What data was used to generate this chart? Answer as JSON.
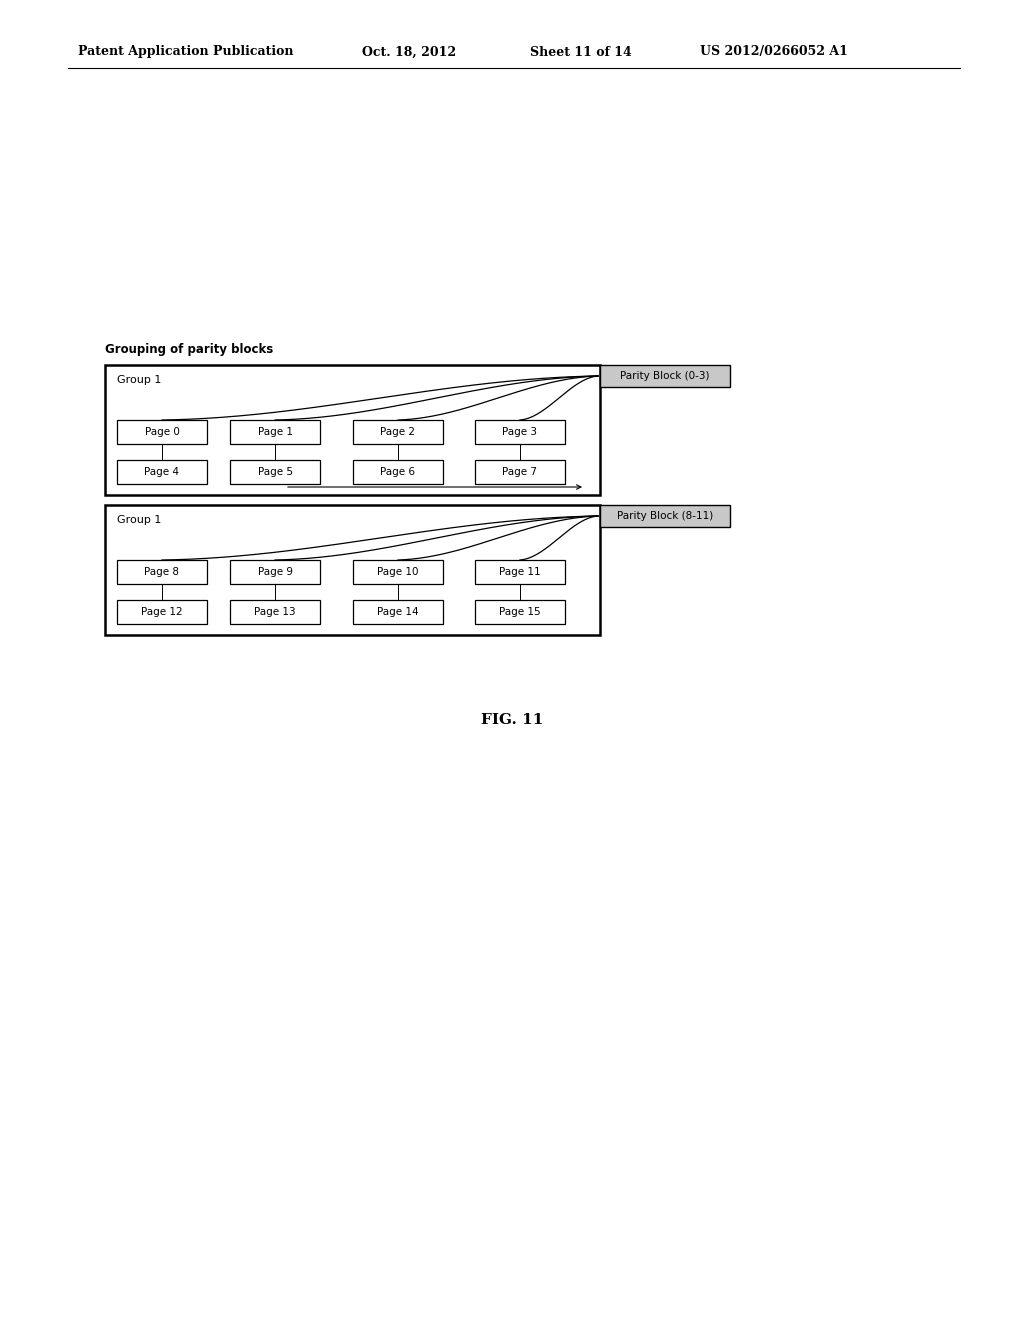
{
  "title_header": "Patent Application Publication",
  "title_date": "Oct. 18, 2012",
  "title_sheet": "Sheet 11 of 14",
  "title_patent": "US 2012/0266052 A1",
  "fig_label": "FIG. 11",
  "section_label": "Grouping of parity blocks",
  "group1_label": "Group 1",
  "parity_block1_label": "Parity Block (0-3)",
  "parity_block2_label": "Parity Block (8-11)",
  "group1_pages_row1": [
    "Page 0",
    "Page 1",
    "Page 2",
    "Page 3"
  ],
  "group1_pages_row2": [
    "Page 4",
    "Page 5",
    "Page 6",
    "Page 7"
  ],
  "group2_pages_row1": [
    "Page 8",
    "Page 9",
    "Page 10",
    "Page 11"
  ],
  "group2_pages_row2": [
    "Page 12",
    "Page 13",
    "Page 14",
    "Page 15"
  ],
  "bg_color": "#ffffff",
  "parity_bg": "#c8c8c8"
}
